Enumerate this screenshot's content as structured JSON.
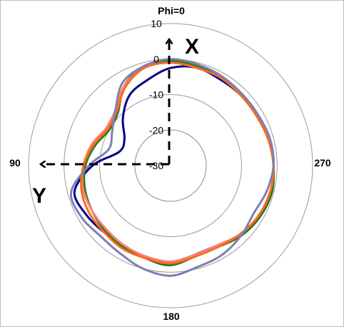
{
  "chart_data": {
    "type": "polar-line",
    "r_ticks": [
      10,
      0,
      -10,
      -20,
      -30
    ],
    "r_min": -30,
    "r_max": 10,
    "angle_labels": {
      "top": "Phi=0",
      "left": "90",
      "right": "270",
      "bottom": "180"
    },
    "axis_labels": {
      "x": "X",
      "y": "Y"
    },
    "series": [
      {
        "color": "#00008b",
        "values": [
          -2.5,
          -5,
          -7,
          -11,
          -15,
          -15,
          -8,
          -2,
          -2.5,
          -3.5,
          -4,
          -3,
          -2,
          -4,
          -4,
          -2.5,
          -1.5,
          -1,
          -1,
          -1.5,
          -2,
          -2,
          -2,
          -1.5
        ]
      },
      {
        "color": "#1e7b1e",
        "values": [
          -0.5,
          -1,
          -4,
          -9,
          -10,
          -8,
          -6,
          -5,
          -4.5,
          -4,
          -3.5,
          -3,
          -2,
          -3.5,
          -3.5,
          -2,
          -1,
          -0.5,
          -1,
          -1.5,
          -2,
          -2,
          -1.5,
          -1
        ]
      },
      {
        "color": "#ff7f7f",
        "values": [
          -1,
          -1.5,
          -4,
          -8,
          -9,
          -7,
          -5.5,
          -4.5,
          -4.5,
          -4.5,
          -4,
          -3.5,
          -3,
          -4,
          -4,
          -2.5,
          -1.5,
          -1,
          -1,
          -1.5,
          -2,
          -2,
          -1.5,
          -1.5
        ]
      },
      {
        "color": "#ff6a1a",
        "values": [
          -1,
          -1.5,
          -4.5,
          -8.5,
          -9.5,
          -7.5,
          -5.5,
          -4,
          -3.5,
          -3.5,
          -3,
          -3,
          -2.5,
          -3.5,
          -3.5,
          -2.5,
          -1.5,
          -1,
          -1,
          -1.5,
          -2,
          -2,
          -1.5,
          -1.5
        ]
      },
      {
        "color": "#7f7fb2",
        "values": [
          0,
          -1,
          -3,
          -8,
          -11,
          -12,
          -7,
          -1,
          -1,
          -2,
          -1.5,
          0,
          1,
          -0.5,
          -1,
          -2,
          -3,
          -2,
          -1,
          -1,
          -1.5,
          -1.5,
          -1,
          -0.5
        ]
      }
    ]
  }
}
